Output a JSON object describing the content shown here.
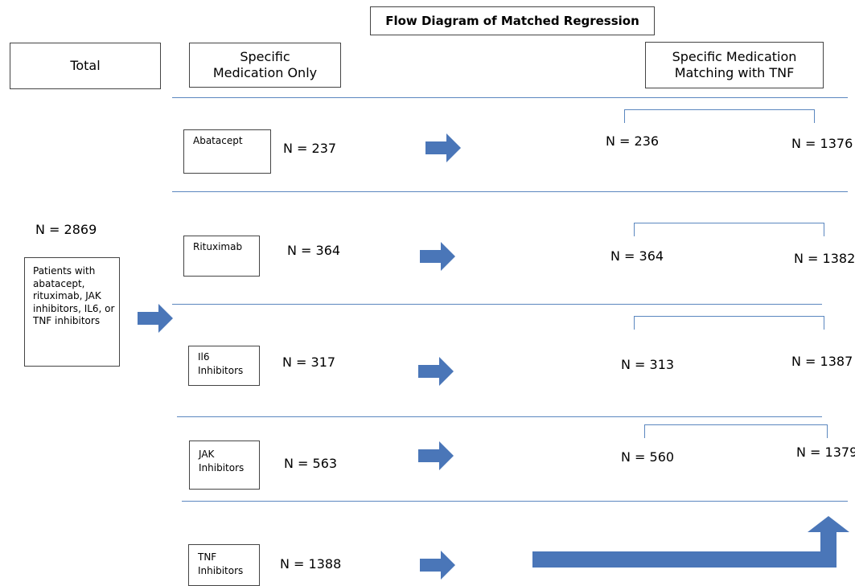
{
  "title": "Flow Diagram of Matched Regression",
  "headers": {
    "total": "Total",
    "specific": "Specific Medication Only",
    "matching": "Specific Medication Matching with TNF"
  },
  "total": {
    "n": "N = 2869",
    "description": "Patients with abatacept, rituximab, JAK inhibitors, IL6, or TNF inhibitors"
  },
  "rows": [
    {
      "medication": "Abatacept",
      "n_only": "N = 237",
      "n_matched": "N = 236",
      "n_tnf": "N = 1376"
    },
    {
      "medication": "Rituximab",
      "n_only": "N = 364",
      "n_matched": "N = 364",
      "n_tnf": "N = 1382"
    },
    {
      "medication": "Il6 Inhibitors",
      "n_only": "N = 317",
      "n_matched": "N = 313",
      "n_tnf": "N = 1387"
    },
    {
      "medication": "JAK Inhibitors",
      "n_only": "N = 563",
      "n_matched": "N = 560",
      "n_tnf": "N = 1379"
    },
    {
      "medication": "TNF Inhibitors",
      "n_only": "N = 1388"
    }
  ],
  "colors": {
    "arrow": "#4a76b8",
    "rule": "#5b87bf"
  }
}
